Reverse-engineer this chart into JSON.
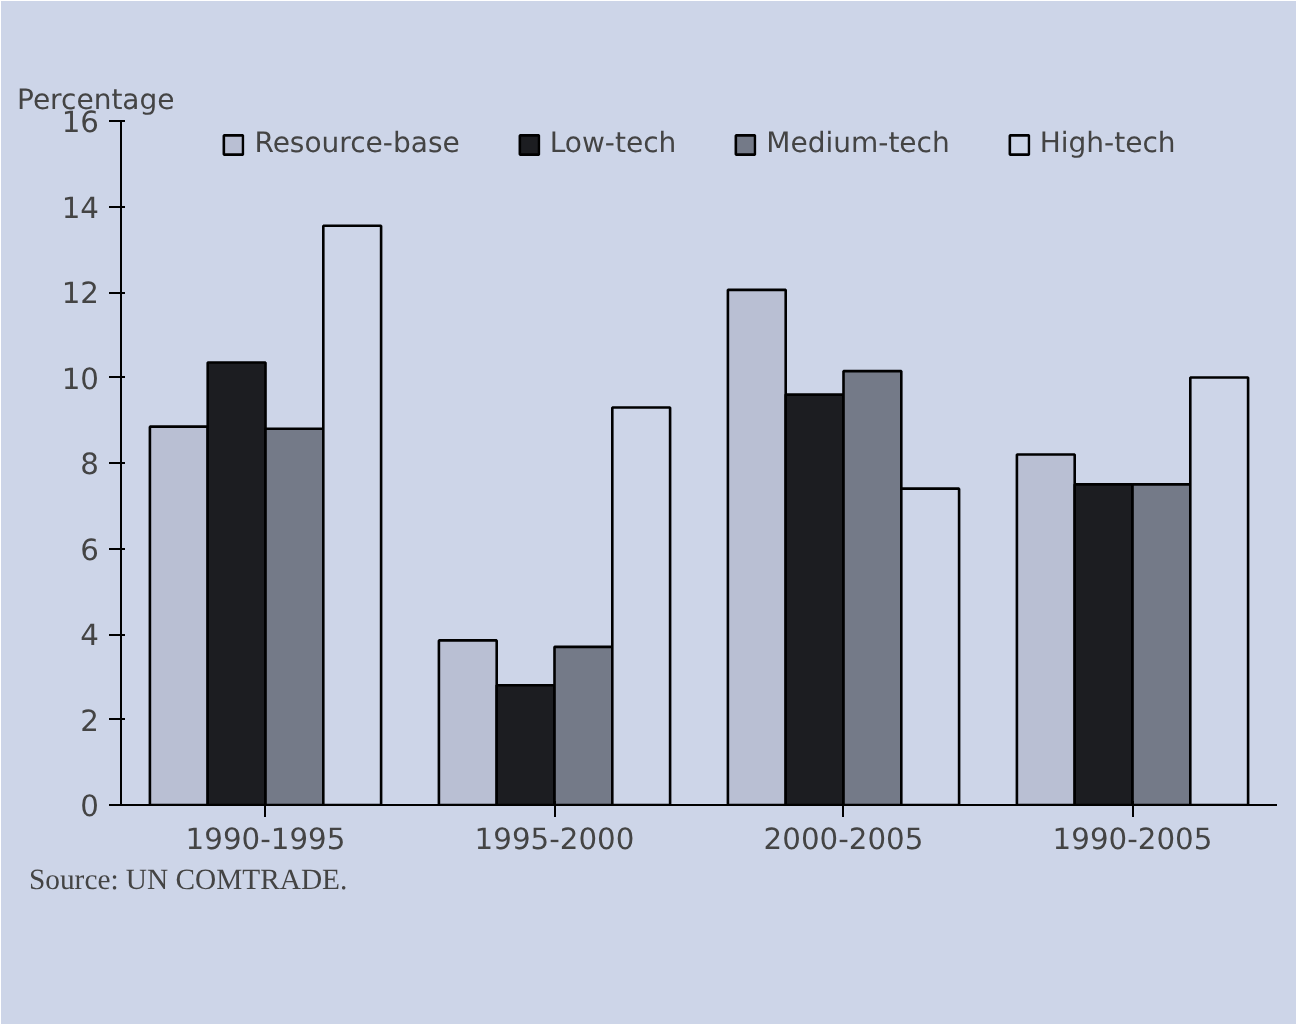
{
  "chart_data": {
    "type": "bar",
    "ylabel": "Percentage",
    "categories": [
      "1990-1995",
      "1995-2000",
      "2000-2005",
      "1990-2005"
    ],
    "series": [
      {
        "name": "Resource-base",
        "color": "#b9bfd3",
        "values": [
          8.85,
          3.85,
          12.05,
          8.2
        ]
      },
      {
        "name": "Low-tech",
        "color": "#1c1d21",
        "values": [
          10.35,
          2.8,
          9.6,
          7.5
        ]
      },
      {
        "name": "Medium-tech",
        "color": "#747a88",
        "values": [
          8.8,
          3.7,
          10.15,
          7.5
        ]
      },
      {
        "name": "High-tech",
        "color": "#cdd5e8",
        "values": [
          13.55,
          9.3,
          7.4,
          10.0
        ]
      }
    ],
    "ylim": [
      0,
      16
    ],
    "yticks": [
      0,
      2,
      4,
      6,
      8,
      10,
      12,
      14,
      16
    ],
    "grid": false,
    "legend": "top",
    "annotations": [
      "Source: UN COMTRADE."
    ]
  }
}
